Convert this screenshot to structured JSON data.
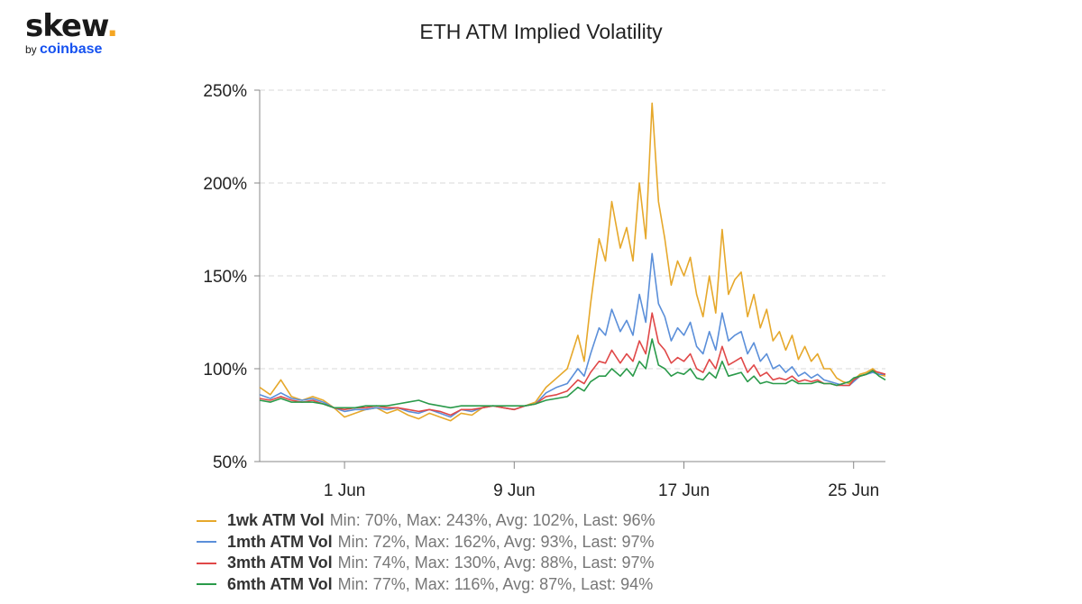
{
  "logo": {
    "brand": "skew",
    "dot": ".",
    "by": "by",
    "company": "coinbase"
  },
  "chart_data": {
    "type": "line",
    "title": "ETH ATM Implied Volatility",
    "xlabel": "",
    "ylabel": "",
    "x_range": [
      0,
      29.5
    ],
    "ylim": [
      50,
      250
    ],
    "y_ticks": [
      {
        "value": 50,
        "label": "50%"
      },
      {
        "value": 100,
        "label": "100%"
      },
      {
        "value": 150,
        "label": "150%"
      },
      {
        "value": 200,
        "label": "200%"
      },
      {
        "value": 250,
        "label": "250%"
      }
    ],
    "x_ticks": [
      {
        "value": 4,
        "label": "1 Jun"
      },
      {
        "value": 12,
        "label": "9 Jun"
      },
      {
        "value": 20,
        "label": "17 Jun"
      },
      {
        "value": 28,
        "label": "25 Jun"
      }
    ],
    "grid": true,
    "legend_position": "bottom",
    "series": [
      {
        "name": "1wk ATM Vol",
        "stats": "Min: 70%, Max: 243%, Avg: 102%, Last: 96%",
        "color": "#e6a82b",
        "x": [
          0,
          0.5,
          1,
          1.5,
          2,
          2.5,
          3,
          3.5,
          4,
          4.5,
          5,
          5.5,
          6,
          6.5,
          7,
          7.5,
          8,
          8.5,
          9,
          9.5,
          10,
          10.5,
          11,
          11.5,
          12,
          12.5,
          13,
          13.5,
          14,
          14.5,
          15,
          15.3,
          15.6,
          16,
          16.3,
          16.6,
          17,
          17.3,
          17.6,
          17.9,
          18.2,
          18.5,
          18.8,
          19.1,
          19.4,
          19.7,
          20,
          20.3,
          20.6,
          20.9,
          21.2,
          21.5,
          21.8,
          22.1,
          22.4,
          22.7,
          23,
          23.3,
          23.6,
          23.9,
          24.2,
          24.5,
          24.8,
          25.1,
          25.4,
          25.7,
          26,
          26.3,
          26.6,
          26.9,
          27.2,
          27.5,
          27.8,
          28,
          28.3,
          28.6,
          28.9,
          29.2,
          29.5
        ],
        "y": [
          90,
          86,
          94,
          85,
          83,
          85,
          83,
          79,
          74,
          76,
          78,
          79,
          76,
          78,
          75,
          73,
          76,
          74,
          72,
          76,
          75,
          79,
          80,
          79,
          78,
          80,
          82,
          90,
          95,
          100,
          118,
          104,
          135,
          170,
          158,
          190,
          165,
          176,
          158,
          200,
          170,
          243,
          190,
          170,
          145,
          158,
          150,
          160,
          140,
          128,
          150,
          130,
          175,
          140,
          148,
          152,
          128,
          140,
          122,
          132,
          115,
          120,
          110,
          118,
          105,
          112,
          104,
          108,
          100,
          100,
          95,
          93,
          92,
          94,
          97,
          98,
          100,
          97,
          96
        ]
      },
      {
        "name": "1mth ATM Vol",
        "stats": "Min: 72%, Max: 162%, Avg: 93%, Last: 97%",
        "color": "#5b8fd9",
        "x": [
          0,
          0.5,
          1,
          1.5,
          2,
          2.5,
          3,
          3.5,
          4,
          4.5,
          5,
          5.5,
          6,
          6.5,
          7,
          7.5,
          8,
          8.5,
          9,
          9.5,
          10,
          10.5,
          11,
          11.5,
          12,
          12.5,
          13,
          13.5,
          14,
          14.5,
          15,
          15.3,
          15.6,
          16,
          16.3,
          16.6,
          17,
          17.3,
          17.6,
          17.9,
          18.2,
          18.5,
          18.8,
          19.1,
          19.4,
          19.7,
          20,
          20.3,
          20.6,
          20.9,
          21.2,
          21.5,
          21.8,
          22.1,
          22.4,
          22.7,
          23,
          23.3,
          23.6,
          23.9,
          24.2,
          24.5,
          24.8,
          25.1,
          25.4,
          25.7,
          26,
          26.3,
          26.6,
          26.9,
          27.2,
          27.5,
          27.8,
          28,
          28.3,
          28.6,
          28.9,
          29.2,
          29.5
        ],
        "y": [
          86,
          84,
          87,
          84,
          83,
          84,
          82,
          79,
          77,
          78,
          78,
          79,
          78,
          79,
          77,
          76,
          78,
          76,
          74,
          78,
          77,
          79,
          80,
          79,
          78,
          80,
          81,
          87,
          90,
          92,
          100,
          96,
          108,
          122,
          118,
          132,
          120,
          126,
          118,
          140,
          125,
          162,
          135,
          128,
          115,
          122,
          118,
          125,
          112,
          108,
          120,
          110,
          130,
          115,
          118,
          120,
          108,
          114,
          104,
          108,
          100,
          102,
          98,
          101,
          96,
          98,
          95,
          97,
          94,
          93,
          92,
          91,
          91,
          93,
          96,
          97,
          98,
          97,
          97
        ]
      },
      {
        "name": "3mth ATM Vol",
        "stats": "Min: 74%, Max: 130%, Avg: 88%, Last: 97%",
        "color": "#e04848",
        "x": [
          0,
          0.5,
          1,
          1.5,
          2,
          2.5,
          3,
          3.5,
          4,
          4.5,
          5,
          5.5,
          6,
          6.5,
          7,
          7.5,
          8,
          8.5,
          9,
          9.5,
          10,
          10.5,
          11,
          11.5,
          12,
          12.5,
          13,
          13.5,
          14,
          14.5,
          15,
          15.3,
          15.6,
          16,
          16.3,
          16.6,
          17,
          17.3,
          17.6,
          17.9,
          18.2,
          18.5,
          18.8,
          19.1,
          19.4,
          19.7,
          20,
          20.3,
          20.6,
          20.9,
          21.2,
          21.5,
          21.8,
          22.1,
          22.4,
          22.7,
          23,
          23.3,
          23.6,
          23.9,
          24.2,
          24.5,
          24.8,
          25.1,
          25.4,
          25.7,
          26,
          26.3,
          26.6,
          26.9,
          27.2,
          27.5,
          27.8,
          28,
          28.3,
          28.6,
          28.9,
          29.2,
          29.5
        ],
        "y": [
          84,
          83,
          85,
          83,
          82,
          83,
          81,
          79,
          78,
          79,
          79,
          80,
          79,
          79,
          78,
          77,
          78,
          77,
          75,
          78,
          78,
          79,
          80,
          79,
          78,
          80,
          81,
          85,
          86,
          88,
          94,
          92,
          98,
          104,
          103,
          110,
          103,
          108,
          104,
          115,
          108,
          130,
          114,
          110,
          103,
          106,
          104,
          108,
          100,
          98,
          105,
          100,
          112,
          102,
          104,
          106,
          98,
          102,
          96,
          98,
          94,
          95,
          94,
          96,
          93,
          94,
          93,
          94,
          92,
          92,
          91,
          91,
          91,
          94,
          96,
          97,
          99,
          98,
          97
        ]
      },
      {
        "name": "6mth ATM Vol",
        "stats": "Min: 77%, Max: 116%, Avg: 87%, Last: 94%",
        "color": "#2a9a4a",
        "x": [
          0,
          0.5,
          1,
          1.5,
          2,
          2.5,
          3,
          3.5,
          4,
          4.5,
          5,
          5.5,
          6,
          6.5,
          7,
          7.5,
          8,
          8.5,
          9,
          9.5,
          10,
          10.5,
          11,
          11.5,
          12,
          12.5,
          13,
          13.5,
          14,
          14.5,
          15,
          15.3,
          15.6,
          16,
          16.3,
          16.6,
          17,
          17.3,
          17.6,
          17.9,
          18.2,
          18.5,
          18.8,
          19.1,
          19.4,
          19.7,
          20,
          20.3,
          20.6,
          20.9,
          21.2,
          21.5,
          21.8,
          22.1,
          22.4,
          22.7,
          23,
          23.3,
          23.6,
          23.9,
          24.2,
          24.5,
          24.8,
          25.1,
          25.4,
          25.7,
          26,
          26.3,
          26.6,
          26.9,
          27.2,
          27.5,
          27.8,
          28,
          28.3,
          28.6,
          28.9,
          29.2,
          29.5
        ],
        "y": [
          83,
          82,
          84,
          82,
          82,
          82,
          81,
          79,
          79,
          79,
          80,
          80,
          80,
          81,
          82,
          83,
          81,
          80,
          79,
          80,
          80,
          80,
          80,
          80,
          80,
          80,
          81,
          83,
          84,
          85,
          90,
          88,
          93,
          96,
          96,
          100,
          96,
          100,
          96,
          104,
          100,
          116,
          102,
          100,
          96,
          98,
          97,
          100,
          95,
          94,
          98,
          95,
          104,
          96,
          97,
          98,
          93,
          96,
          92,
          93,
          92,
          92,
          92,
          94,
          92,
          92,
          92,
          93,
          92,
          92,
          91,
          92,
          93,
          95,
          96,
          97,
          99,
          96,
          94
        ]
      }
    ]
  }
}
